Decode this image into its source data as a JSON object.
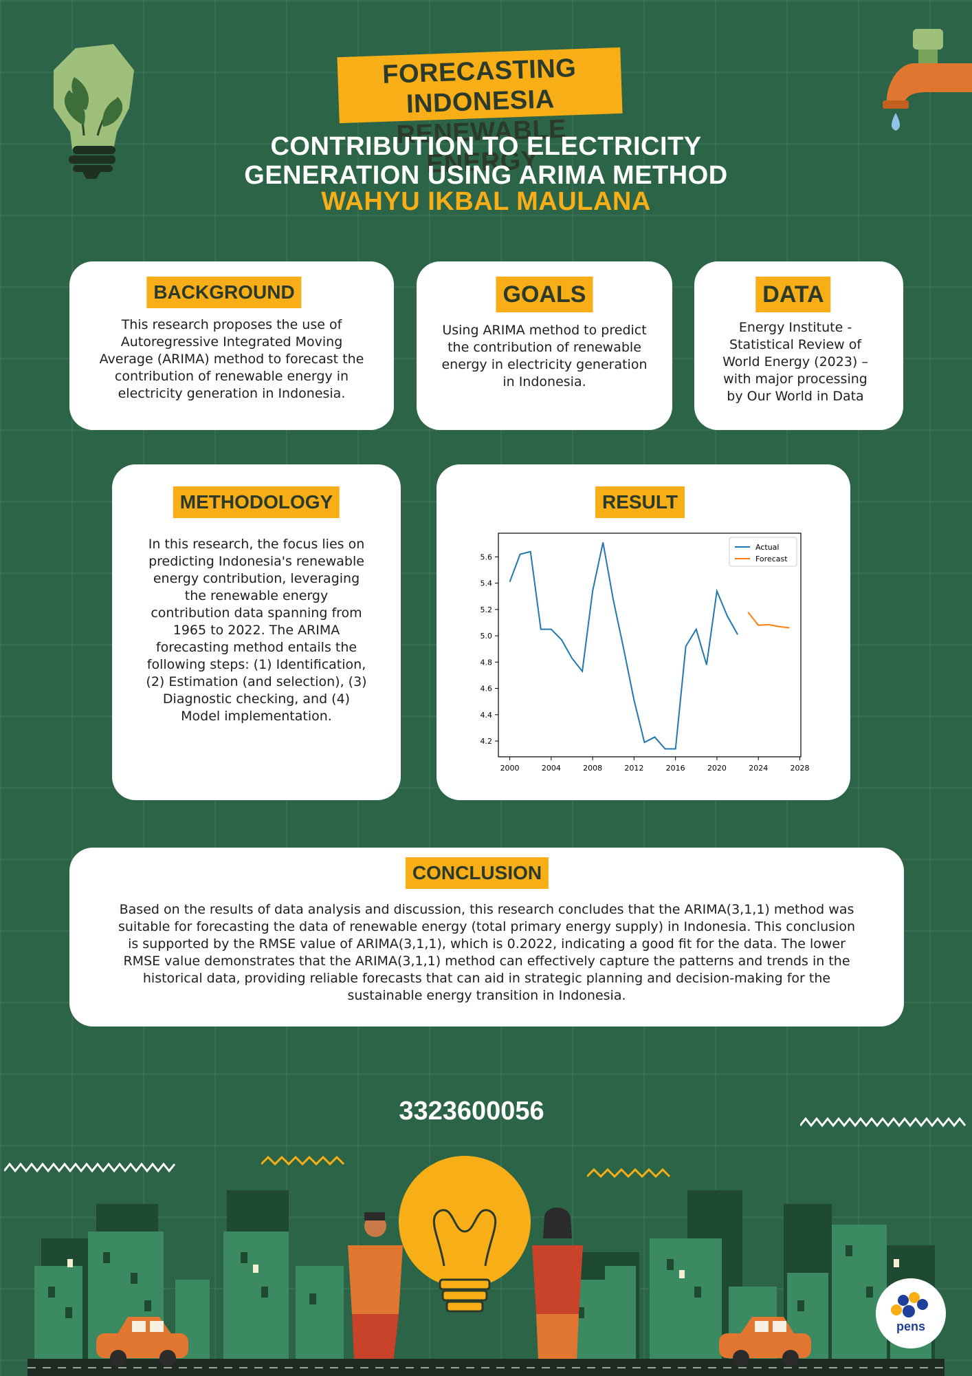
{
  "header": {
    "title_line1": "FORECASTING INDONESIA",
    "title_line2": "RENEWABLE ENERGY",
    "subtitle_line1": "CONTRIBUTION TO ELECTRICITY",
    "subtitle_line2": "GENERATION USING ARIMA METHOD",
    "author": "WAHYU IKBAL MAULANA"
  },
  "background": {
    "heading": "BACKGROUND",
    "text": "This research proposes the use of Autoregressive Integrated Moving Average (ARIMA) method to forecast the contribution of renewable energy in electricity generation in Indonesia."
  },
  "goals": {
    "heading": "GOALS",
    "text": "Using ARIMA method to predict the contribution of renewable energy in electricity generation in Indonesia."
  },
  "data_source": {
    "heading": "DATA",
    "text": "Energy Institute - Statistical Review of World Energy (2023) – with major processing by Our World in Data"
  },
  "methodology": {
    "heading": "METHODOLOGY",
    "text": "In this research, the focus lies on predicting Indonesia's renewable energy contribution, leveraging the renewable energy contribution data spanning from 1965 to 2022. The ARIMA forecasting method entails the following steps: (1) Identification, (2) Estimation (and selection), (3) Diagnostic checking, and (4) Model implementation."
  },
  "result": {
    "heading": "RESULT"
  },
  "chart_data": {
    "type": "line",
    "title": "",
    "xlabel": "",
    "ylabel": "",
    "xlim": [
      1998.9,
      2028.1
    ],
    "ylim": [
      4.08,
      5.78
    ],
    "xticks": [
      2000,
      2004,
      2008,
      2012,
      2016,
      2020,
      2024,
      2028
    ],
    "yticks": [
      4.2,
      4.4,
      4.6,
      4.8,
      5.0,
      5.2,
      5.4,
      5.6
    ],
    "ytick_labels": [
      "4.2",
      "4.4",
      "4.6",
      "4.8",
      "5.0",
      "5.2",
      "5.4",
      "5.6"
    ],
    "grid": false,
    "legend": "top-right",
    "series": [
      {
        "name": "Actual",
        "color": "#1f77b4",
        "x": [
          2000,
          2001,
          2002,
          2003,
          2004,
          2005,
          2006,
          2007,
          2008,
          2009,
          2010,
          2011,
          2012,
          2013,
          2014,
          2015,
          2016,
          2017,
          2018,
          2019,
          2020,
          2021,
          2022
        ],
        "y": [
          5.41,
          5.62,
          5.64,
          5.05,
          5.05,
          4.97,
          4.83,
          4.73,
          5.34,
          5.71,
          5.27,
          4.9,
          4.51,
          4.19,
          4.23,
          4.14,
          4.14,
          4.92,
          5.05,
          4.78,
          5.34,
          5.15,
          5.01
        ]
      },
      {
        "name": "Forecast",
        "color": "#ff7f0e",
        "x": [
          2023,
          2024,
          2025,
          2026,
          2027
        ],
        "y": [
          5.18,
          5.08,
          5.085,
          5.07,
          5.06
        ]
      }
    ]
  },
  "conclusion": {
    "heading": "CONCLUSION",
    "text": "Based on the results of data analysis and discussion, this research concludes that the ARIMA(3,1,1) method was suitable for forecasting the data of renewable energy (total primary energy supply) in Indonesia. This conclusion is supported by the RMSE value of ARIMA(3,1,1), which is 0.2022, indicating a good fit for the data. The lower RMSE value demonstrates that the ARIMA(3,1,1) method can effectively capture the patterns and trends in the historical data, providing reliable forecasts that can aid in strategic planning and decision-making for the sustainable energy transition in Indonesia."
  },
  "footer": {
    "student_id": "3323600056",
    "logo_text": "pens"
  },
  "colors": {
    "background": "#2b6447",
    "accent": "#f7ae17",
    "card": "#ffffff"
  },
  "icons": [
    "leaf-lightbulb-icon",
    "water-faucet-icon",
    "zigzag-decoration",
    "city-skyline-illustration",
    "pens-logo"
  ]
}
